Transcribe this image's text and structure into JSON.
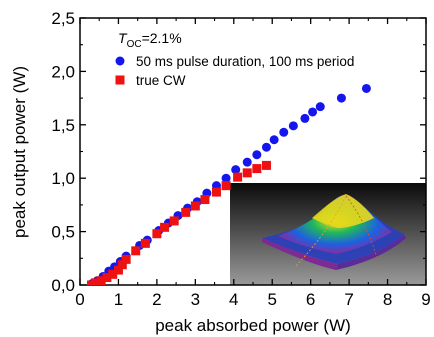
{
  "chart_data": {
    "type": "scatter",
    "title": "",
    "xlabel": "peak absorbed power (W)",
    "ylabel": "peak output power (W)",
    "xlim": [
      0,
      9
    ],
    "ylim": [
      0,
      2.5
    ],
    "x_ticks": [
      0,
      1,
      2,
      3,
      4,
      5,
      6,
      7,
      8,
      9
    ],
    "x_tick_labels": [
      "0",
      "1",
      "2",
      "3",
      "4",
      "5",
      "6",
      "7",
      "8",
      "9"
    ],
    "y_ticks": [
      0,
      0.5,
      1.0,
      1.5,
      2.0,
      2.5
    ],
    "y_tick_labels": [
      "0,0",
      "0,5",
      "1,0",
      "1,5",
      "2,0",
      "2,5"
    ],
    "grid": false,
    "legend_position": "top-left",
    "annotation": {
      "symbol": "T",
      "subscript": "OC",
      "value": "=2.1%"
    },
    "series": [
      {
        "name": "50 ms pulse duration, 100 ms period",
        "marker": "circle",
        "color": "#1515ee",
        "points": [
          [
            0.3,
            0.01
          ],
          [
            0.45,
            0.04
          ],
          [
            0.6,
            0.08
          ],
          [
            0.75,
            0.13
          ],
          [
            0.9,
            0.17
          ],
          [
            1.05,
            0.22
          ],
          [
            1.2,
            0.27
          ],
          [
            1.55,
            0.37
          ],
          [
            1.75,
            0.42
          ],
          [
            2.05,
            0.51
          ],
          [
            2.3,
            0.58
          ],
          [
            2.55,
            0.65
          ],
          [
            2.8,
            0.72
          ],
          [
            3.05,
            0.78
          ],
          [
            3.3,
            0.86
          ],
          [
            3.55,
            0.93
          ],
          [
            3.8,
            1.0
          ],
          [
            4.05,
            1.08
          ],
          [
            4.35,
            1.15
          ],
          [
            4.6,
            1.22
          ],
          [
            4.85,
            1.29
          ],
          [
            5.05,
            1.36
          ],
          [
            5.3,
            1.43
          ],
          [
            5.55,
            1.49
          ],
          [
            5.85,
            1.56
          ],
          [
            6.05,
            1.62
          ],
          [
            6.25,
            1.67
          ],
          [
            6.8,
            1.75
          ],
          [
            7.45,
            1.84
          ]
        ]
      },
      {
        "name": "true CW",
        "marker": "square",
        "color": "#ee1111",
        "points": [
          [
            0.3,
            0.0
          ],
          [
            0.4,
            0.02
          ],
          [
            0.55,
            0.04
          ],
          [
            0.7,
            0.07
          ],
          [
            0.85,
            0.1
          ],
          [
            1.0,
            0.14
          ],
          [
            1.1,
            0.19
          ],
          [
            1.2,
            0.24
          ],
          [
            1.45,
            0.32
          ],
          [
            1.7,
            0.39
          ],
          [
            2.0,
            0.48
          ],
          [
            2.2,
            0.54
          ],
          [
            2.45,
            0.6
          ],
          [
            2.75,
            0.68
          ],
          [
            3.0,
            0.74
          ],
          [
            3.25,
            0.8
          ],
          [
            3.55,
            0.87
          ],
          [
            3.8,
            0.93
          ],
          [
            4.1,
            1.01
          ],
          [
            4.35,
            1.05
          ],
          [
            4.6,
            1.09
          ],
          [
            4.85,
            1.12
          ]
        ]
      }
    ]
  },
  "inset": {
    "description_name": "beam-profile-3d-inset",
    "colors": {
      "background_top": "#0b0b0b",
      "background_bottom": "#9a9a9a",
      "peak": "#f2e01a",
      "mid": "#1fb85a",
      "base": "#1e60e0",
      "edge": "#8a2b9e"
    }
  }
}
